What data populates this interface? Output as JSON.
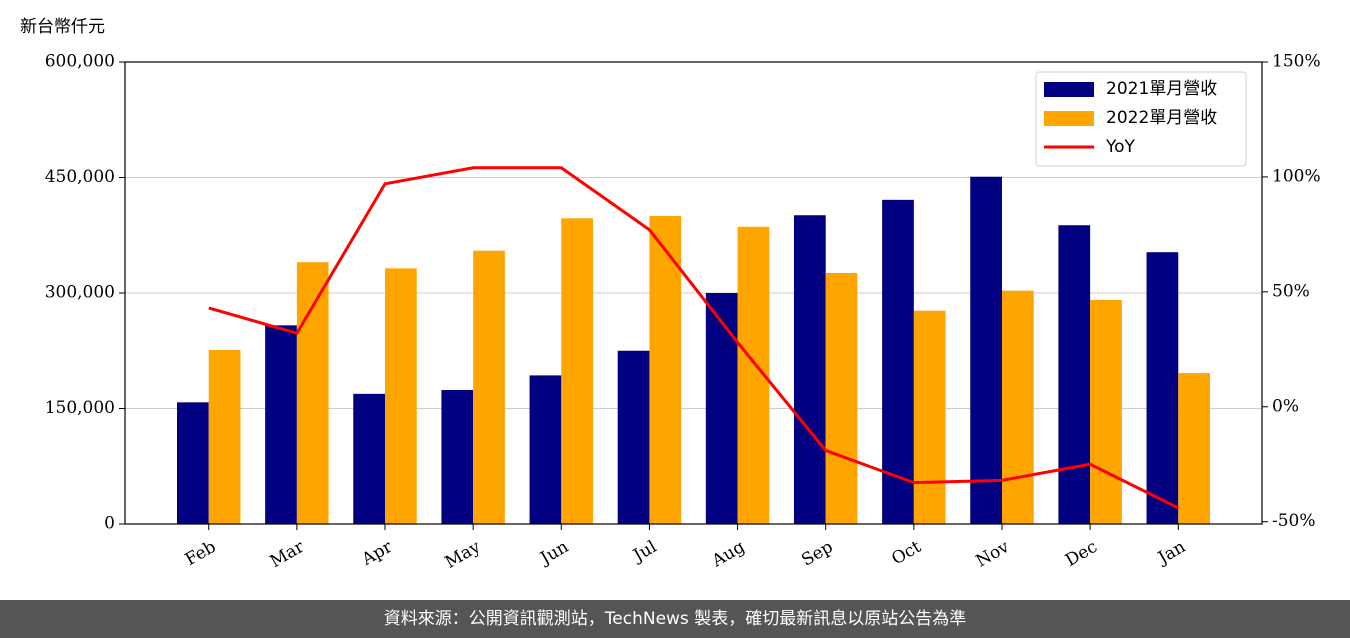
{
  "chart_data": {
    "type": "bar_line",
    "ylabel": "新台幣仟元",
    "categories": [
      "Feb",
      "Mar",
      "Apr",
      "May",
      "Jun",
      "Jul",
      "Aug",
      "Sep",
      "Oct",
      "Nov",
      "Dec",
      "Jan"
    ],
    "series": [
      {
        "name": "2021單月營收",
        "color": "#000080",
        "type": "bar",
        "values": [
          158000,
          258000,
          169000,
          174000,
          193000,
          225000,
          300000,
          401000,
          421000,
          451000,
          388000,
          353000
        ]
      },
      {
        "name": "2022單月營收",
        "color": "#ffa500",
        "type": "bar",
        "values": [
          226000,
          340000,
          332000,
          355000,
          397000,
          400000,
          386000,
          326000,
          277000,
          303000,
          291000,
          196000
        ]
      },
      {
        "name": "YoY",
        "color": "#ff0000",
        "type": "line",
        "axis": "y2",
        "values": [
          43,
          32,
          97,
          104,
          104,
          77,
          28,
          -19,
          -33,
          -32,
          -25,
          -44
        ]
      }
    ],
    "ylim": [
      0,
      600000
    ],
    "yticks": [
      0,
      {
        "value": 150000,
        "label": "150,000"
      },
      {
        "value": 300000,
        "label": "300,000"
      },
      {
        "value": 450000,
        "label": "450,000"
      },
      {
        "value": 600000,
        "label": "600,000"
      }
    ],
    "y2lim": [
      -51,
      150
    ],
    "y2ticks": [
      {
        "value": -50,
        "label": "-50%"
      },
      {
        "value": 0,
        "label": "0%"
      },
      {
        "value": 50,
        "label": "50%"
      },
      {
        "value": 100,
        "label": "100%"
      },
      {
        "value": 150,
        "label": "150%"
      }
    ],
    "grid": true,
    "legend": "upper right",
    "source": "資料來源：公開資訊觀測站，TechNews 製表，確切最新訊息以原站公告為準"
  }
}
